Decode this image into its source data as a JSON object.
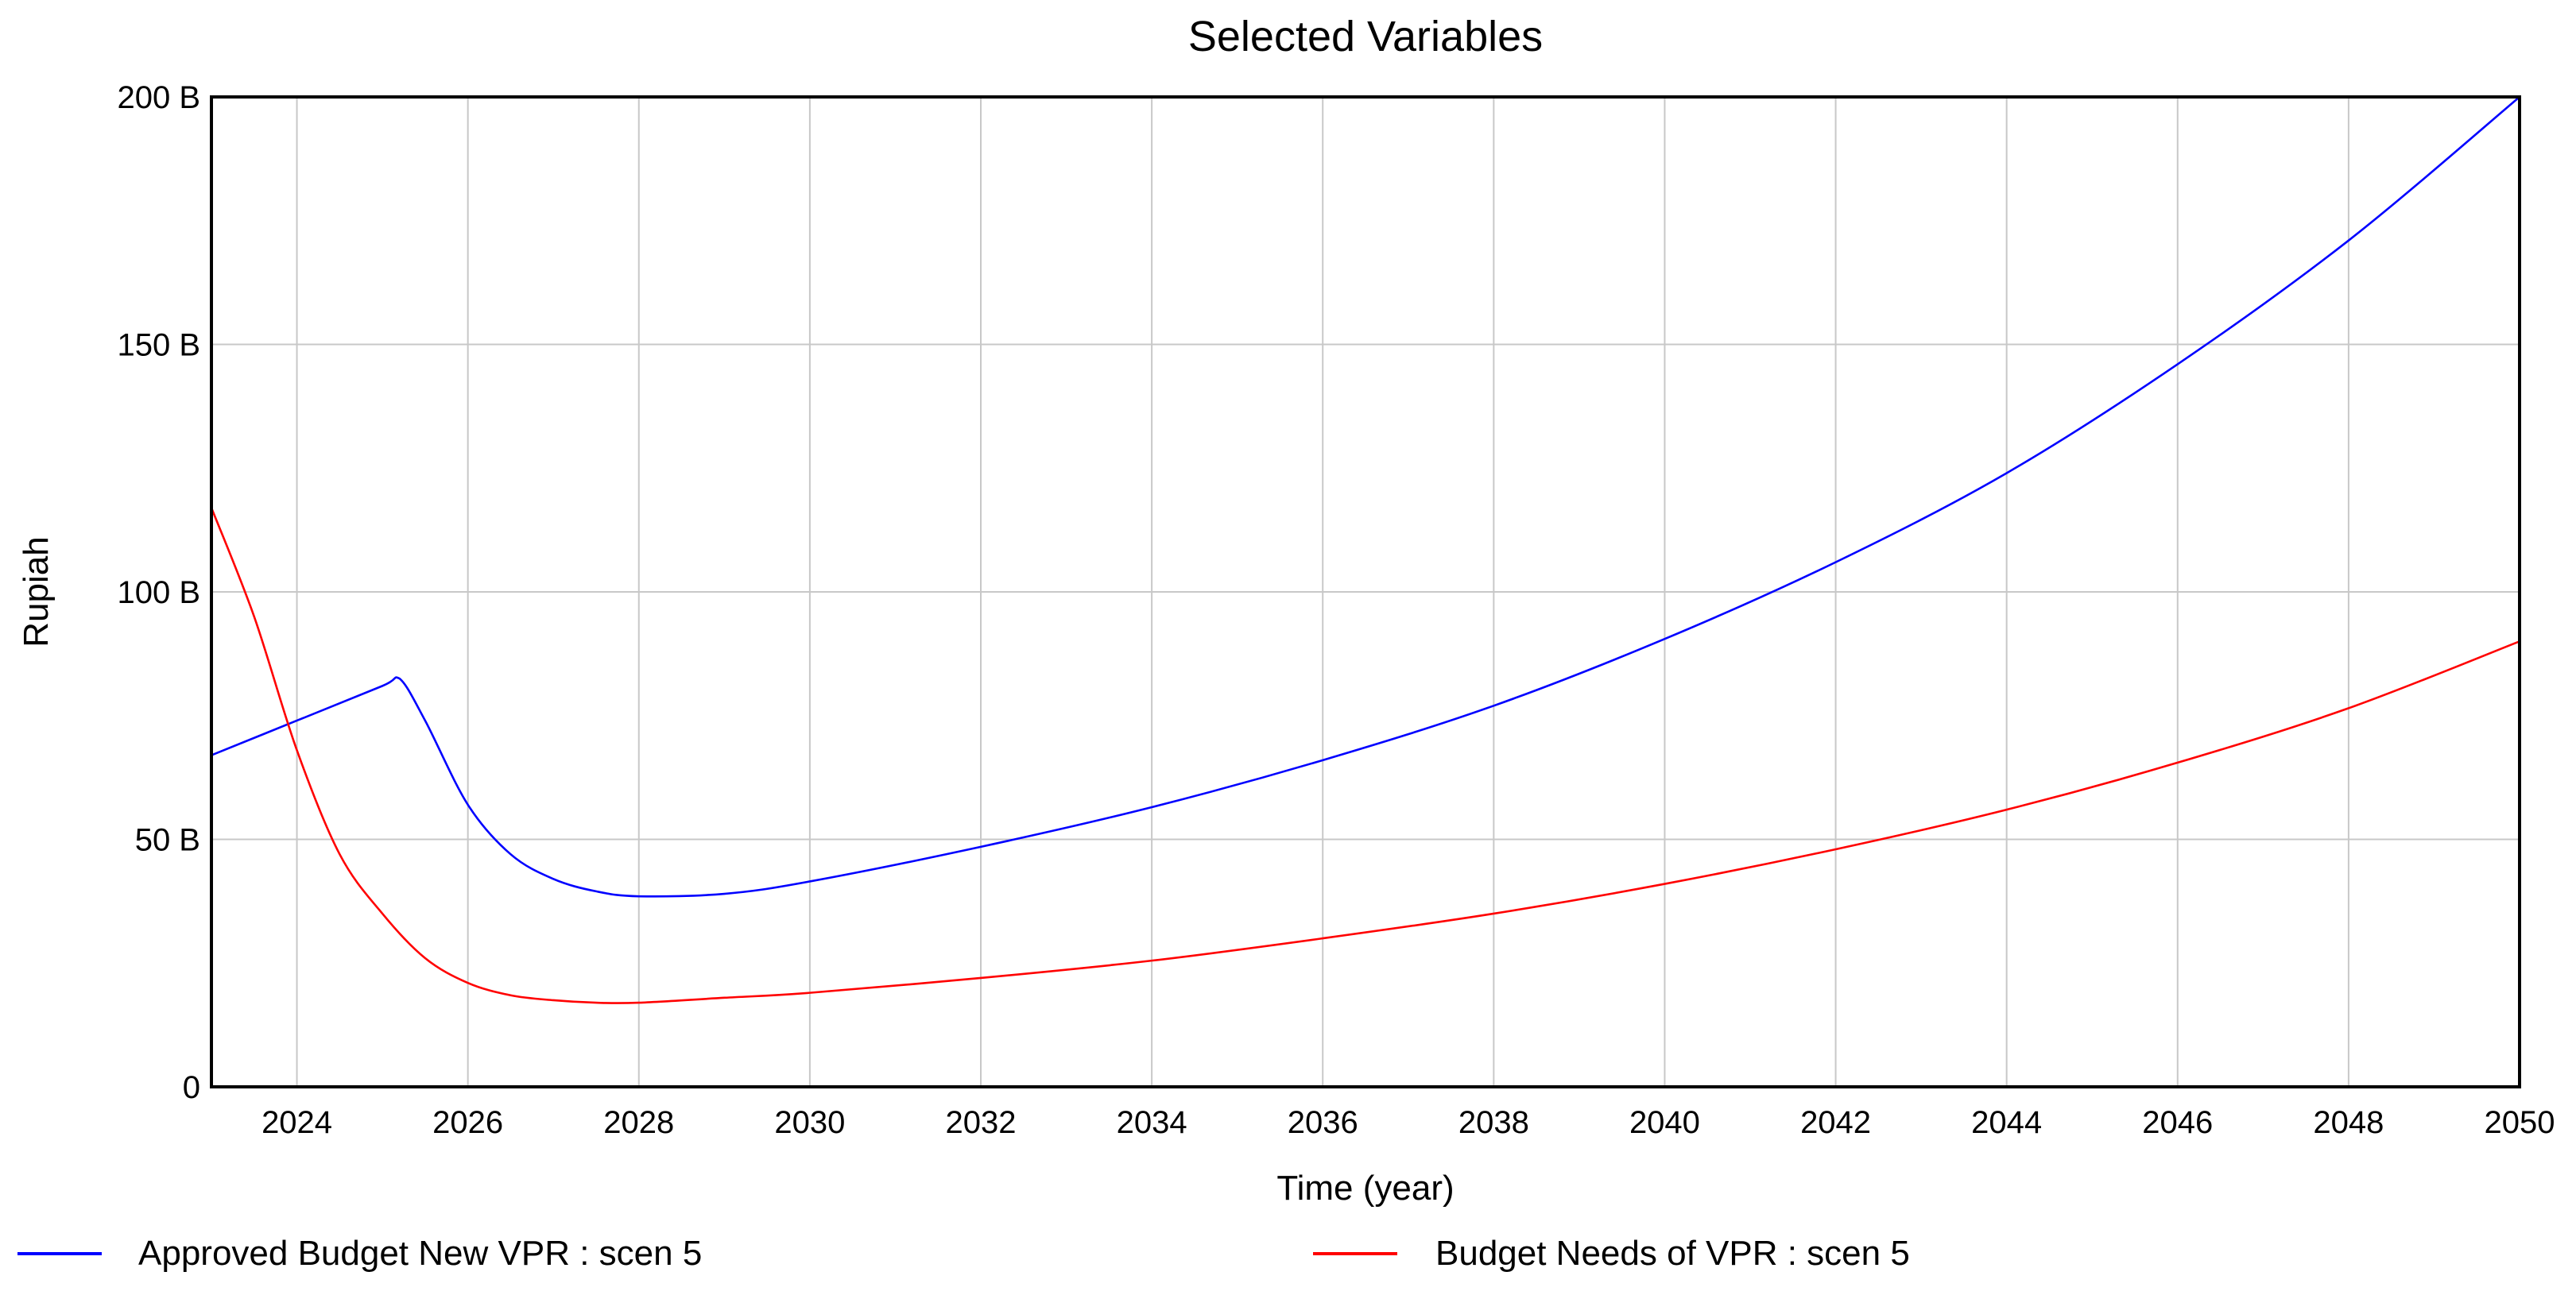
{
  "chart_data": {
    "type": "line",
    "title": "Selected Variables",
    "xlabel": "Time (year)",
    "ylabel": "Rupiah",
    "xlim": [
      2023,
      2050
    ],
    "ylim": [
      0,
      200
    ],
    "grid": true,
    "legend_position": "bottom",
    "x_ticks": [
      2024,
      2026,
      2028,
      2030,
      2032,
      2034,
      2036,
      2038,
      2040,
      2042,
      2044,
      2046,
      2048,
      2050
    ],
    "x_tick_labels": [
      "2024",
      "2026",
      "2028",
      "2030",
      "2032",
      "2034",
      "2036",
      "2038",
      "2040",
      "2042",
      "2044",
      "2046",
      "2048",
      "2050"
    ],
    "y_ticks": [
      0,
      50,
      100,
      150,
      200
    ],
    "y_tick_labels": [
      "0",
      "50 B",
      "100 B",
      "150 B",
      "200 B"
    ],
    "series": [
      {
        "name": "Approved Budget New VPR : scen 5",
        "color": "#0000ff",
        "x": [
          2023,
          2024,
          2025,
          2025.2,
          2025.5,
          2026,
          2026.5,
          2027,
          2027.5,
          2028,
          2029,
          2030,
          2032,
          2034,
          2036,
          2038,
          2040,
          2042,
          2044,
          2046,
          2048,
          2050
        ],
        "values": [
          67,
          74,
          81,
          82.5,
          74,
          57,
          47,
          42,
          39.5,
          38.5,
          39,
          41.5,
          48.5,
          56.5,
          66,
          77,
          90.5,
          106,
          124,
          146,
          171,
          200
        ]
      },
      {
        "name": "Budget Needs of VPR : scen 5",
        "color": "#ff0000",
        "x": [
          2023,
          2023.5,
          2024,
          2024.5,
          2025,
          2025.5,
          2026,
          2026.5,
          2027,
          2027.5,
          2028,
          2029,
          2030,
          2032,
          2034,
          2036,
          2038,
          2040,
          2042,
          2044,
          2046,
          2048,
          2050
        ],
        "values": [
          117,
          95,
          68,
          47,
          35,
          26,
          21,
          18.5,
          17.5,
          17,
          17,
          18,
          19,
          22,
          25.5,
          30,
          35,
          41,
          48,
          56,
          65.5,
          76.5,
          90
        ]
      }
    ]
  }
}
